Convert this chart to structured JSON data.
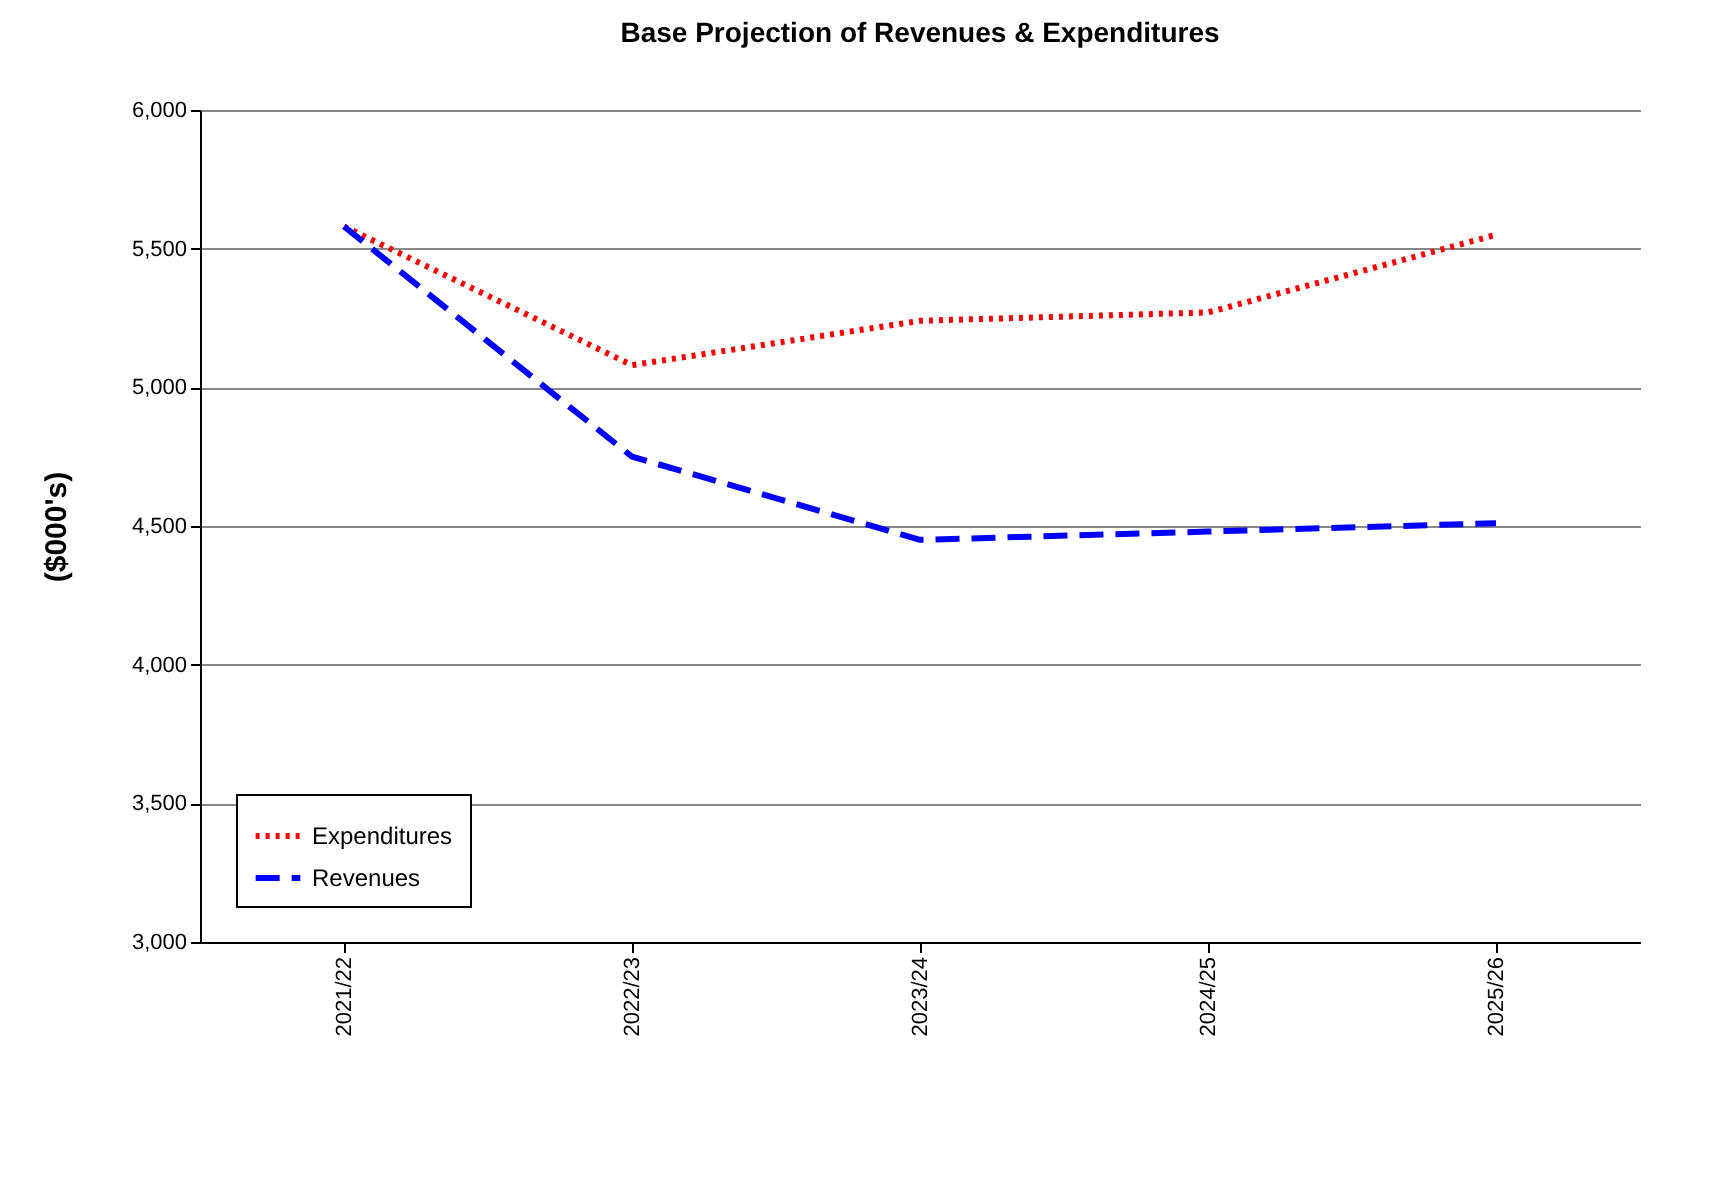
{
  "chart_data": {
    "type": "line",
    "title": "Base Projection of Revenues & Expenditures",
    "ylabel": "($000's)",
    "categories": [
      "2021/22",
      "2022/23",
      "2023/24",
      "2024/25",
      "2025/26"
    ],
    "series": [
      {
        "name": "Expenditures",
        "color": "#ff0000",
        "line_style": "dotted",
        "values": [
          5580,
          5080,
          5240,
          5270,
          5550
        ]
      },
      {
        "name": "Revenues",
        "color": "#0000ff",
        "line_style": "dashed",
        "values": [
          5580,
          4750,
          4450,
          4480,
          4510
        ]
      }
    ],
    "ylim": [
      3000,
      6000
    ],
    "yticks": [
      {
        "value": 3000,
        "label": "3,000"
      },
      {
        "value": 3500,
        "label": "3,500"
      },
      {
        "value": 4000,
        "label": "4,000"
      },
      {
        "value": 4500,
        "label": "4,500"
      },
      {
        "value": 5000,
        "label": "5,000"
      },
      {
        "value": 5500,
        "label": "5,500"
      },
      {
        "value": 6000,
        "label": "6,000"
      }
    ],
    "grid": "y",
    "legend": "bottom left",
    "marker": "none"
  }
}
